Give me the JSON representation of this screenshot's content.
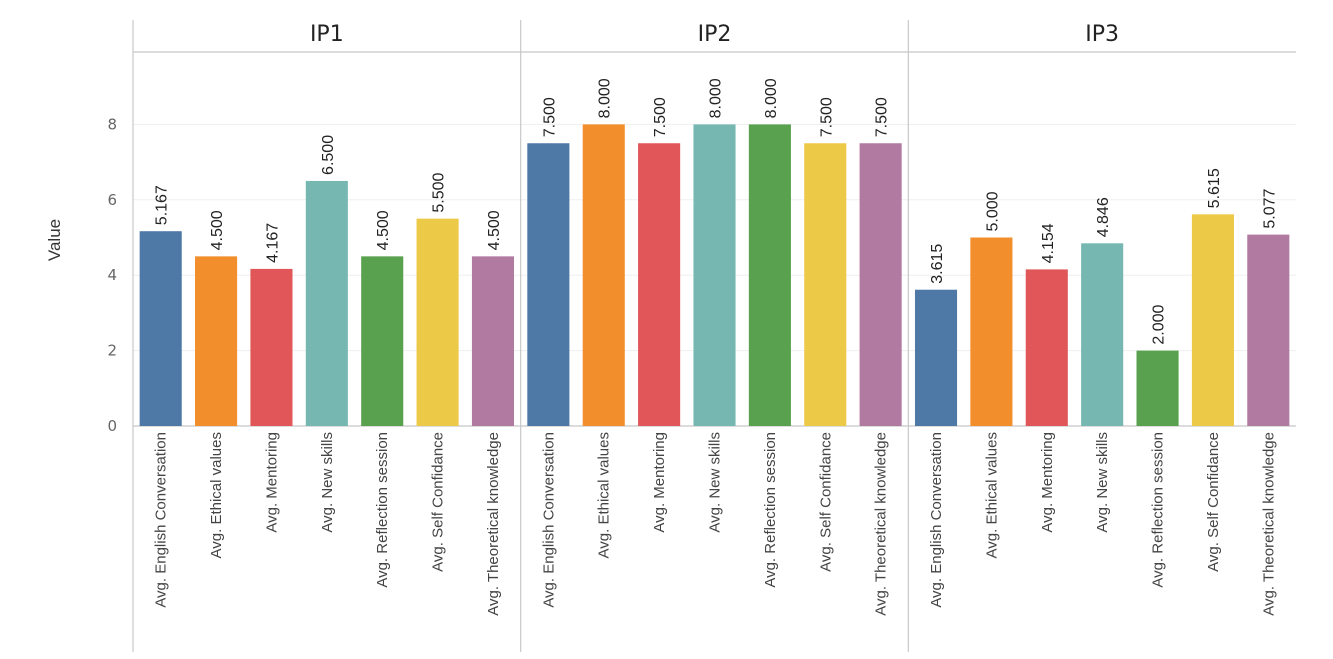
{
  "chart_data": {
    "type": "bar",
    "ylabel": "Value",
    "ylim": [
      0,
      10
    ],
    "yticks": [
      0,
      2,
      4,
      6,
      8
    ],
    "grid": true,
    "categories": [
      "Avg. English Conversation",
      "Avg. Ethical values",
      "Avg. Mentoring",
      "Avg. New skills",
      "Avg. Reflection session",
      "Avg. Self Confidance",
      "Avg. Theoretical knowledge"
    ],
    "colors": [
      "#4e79a7",
      "#f28e2b",
      "#e15759",
      "#76b7b2",
      "#59a14f",
      "#edc948",
      "#b07aa1"
    ],
    "panels": [
      {
        "name": "IP1",
        "values": [
          5.167,
          4.5,
          4.167,
          6.5,
          4.5,
          5.5,
          4.5
        ],
        "labels": [
          "5.167",
          "4.500",
          "4.167",
          "6.500",
          "4.500",
          "5.500",
          "4.500"
        ]
      },
      {
        "name": "IP2",
        "values": [
          7.5,
          8.0,
          7.5,
          8.0,
          8.0,
          7.5,
          7.5
        ],
        "labels": [
          "7.500",
          "8.000",
          "7.500",
          "8.000",
          "8.000",
          "7.500",
          "7.500"
        ]
      },
      {
        "name": "IP3",
        "values": [
          3.615,
          5.0,
          4.154,
          4.846,
          2.0,
          5.615,
          5.077
        ],
        "labels": [
          "3.615",
          "5.000",
          "4.154",
          "4.846",
          "2.000",
          "5.615",
          "5.077"
        ]
      }
    ]
  }
}
